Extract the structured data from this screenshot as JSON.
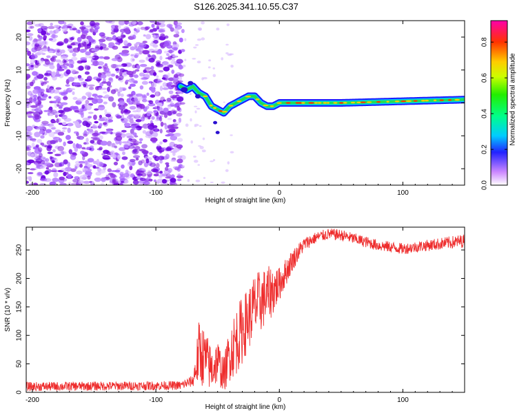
{
  "title": "S126.2025.341.10.55.C37",
  "chart_data": [
    {
      "type": "heatmap",
      "name": "spectrogram",
      "xlabel": "Height of straight line (km)",
      "ylabel": "Frequency (Hz)",
      "xlim": [
        -205,
        150
      ],
      "ylim": [
        -25,
        25
      ],
      "xticks": [
        -200,
        -100,
        0,
        100
      ],
      "yticks": [
        -20,
        -10,
        0,
        10,
        20
      ],
      "noise_region_x": [
        -205,
        -78
      ],
      "ridge": {
        "x": [
          -80,
          -75,
          -70,
          -65,
          -60,
          -55,
          -50,
          -45,
          -40,
          -35,
          -30,
          -25,
          -20,
          -15,
          -10,
          -5,
          0,
          20,
          50,
          100,
          150
        ],
        "freq": [
          5,
          4,
          5,
          3,
          2,
          -1,
          -2,
          -3,
          -1,
          0,
          1,
          2,
          2,
          0,
          -1,
          -1,
          0,
          0,
          0,
          0.5,
          1
        ]
      },
      "colorbar": {
        "label": "Normalized spectral amplitude",
        "ticks": [
          "0.0",
          "0.2",
          "0.4",
          "0.6",
          "0.8"
        ],
        "range": [
          0,
          0.92
        ]
      }
    },
    {
      "type": "line",
      "name": "snr",
      "xlabel": "Height of straight line (km)",
      "ylabel": "SNR (10 * v/v)",
      "xlim": [
        -205,
        150
      ],
      "ylim": [
        0,
        290
      ],
      "xticks": [
        -200,
        -100,
        0,
        100
      ],
      "yticks": [
        0,
        50,
        100,
        150,
        200,
        250
      ],
      "color": "#ee2c2c",
      "envelope": {
        "x": [
          -205,
          -80,
          -70,
          -65,
          -60,
          -55,
          -50,
          -45,
          -40,
          -35,
          -30,
          -25,
          -20,
          -15,
          -10,
          -5,
          0,
          10,
          20,
          30,
          40,
          50,
          60,
          80,
          100,
          120,
          150
        ],
        "mean": [
          10,
          12,
          20,
          70,
          60,
          40,
          55,
          30,
          70,
          90,
          110,
          130,
          150,
          160,
          170,
          180,
          190,
          230,
          260,
          272,
          278,
          276,
          270,
          258,
          252,
          258,
          266
        ],
        "spread": [
          8,
          8,
          10,
          60,
          50,
          40,
          40,
          30,
          50,
          60,
          60,
          55,
          60,
          55,
          50,
          45,
          30,
          20,
          12,
          10,
          10,
          10,
          10,
          10,
          10,
          10,
          12
        ]
      }
    }
  ]
}
